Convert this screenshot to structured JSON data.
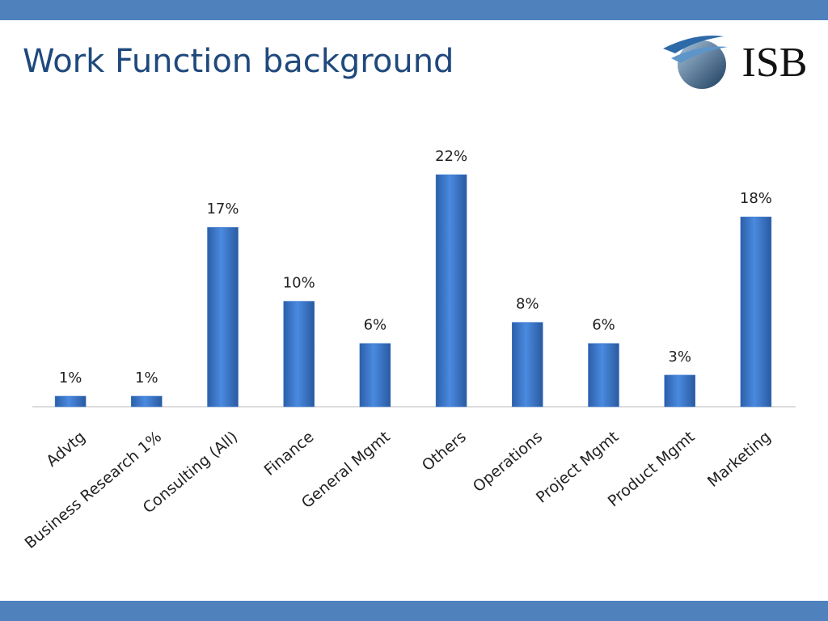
{
  "logo": "ISB",
  "chart_data": {
    "type": "bar",
    "title": "Work Function background",
    "categories": [
      "Advtg",
      "Business Research 1%",
      "Consulting (All)",
      "Finance",
      "General Mgmt",
      "Others",
      "Operations",
      "Project Mgmt",
      "Product Mgmt",
      "Marketing"
    ],
    "values": [
      1,
      1,
      17,
      10,
      6,
      22,
      8,
      6,
      3,
      18
    ],
    "value_labels": [
      "1%",
      "1%",
      "17%",
      "10%",
      "6%",
      "22%",
      "8%",
      "6%",
      "3%",
      "18%"
    ],
    "color": "#3a78cf"
  }
}
